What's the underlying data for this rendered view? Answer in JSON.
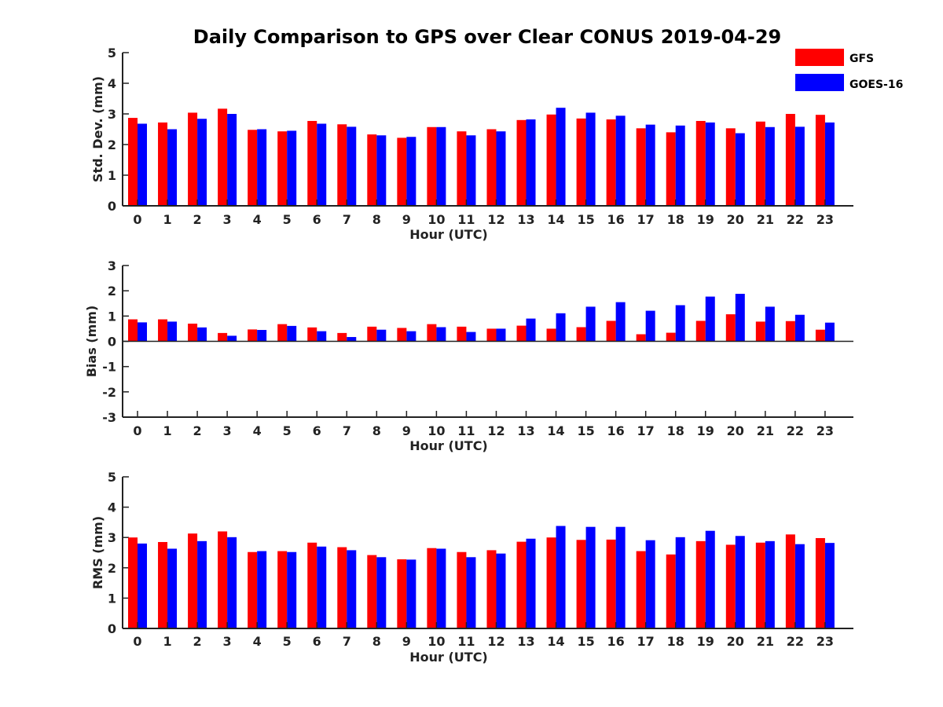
{
  "chart_data": {
    "title": "Daily Comparison to GPS over Clear CONUS 2019-04-29",
    "type": "bar",
    "legend": {
      "placement": "top-right",
      "entries": [
        {
          "name": "GFS",
          "color": "#ff0000"
        },
        {
          "name": "GOES-16",
          "color": "#0000ff"
        }
      ]
    },
    "categories": [
      "0",
      "1",
      "2",
      "3",
      "4",
      "5",
      "6",
      "7",
      "8",
      "9",
      "10",
      "11",
      "12",
      "13",
      "14",
      "15",
      "16",
      "17",
      "18",
      "19",
      "20",
      "21",
      "22",
      "23"
    ],
    "panels": [
      {
        "ylabel": "Std. Dev. (mm)",
        "xlabel": "Hour (UTC)",
        "ylim": [
          0,
          5
        ],
        "yticks": [
          "0",
          "1",
          "2",
          "3",
          "4",
          "5"
        ],
        "series": [
          {
            "name": "GFS",
            "color": "#ff0000",
            "values": [
              2.87,
              2.72,
              3.04,
              3.17,
              2.48,
              2.43,
              2.77,
              2.66,
              2.33,
              2.22,
              2.57,
              2.43,
              2.5,
              2.8,
              2.98,
              2.85,
              2.82,
              2.53,
              2.4,
              2.77,
              2.53,
              2.75,
              3.0,
              2.97
            ]
          },
          {
            "name": "GOES-16",
            "color": "#0000ff",
            "values": [
              2.68,
              2.5,
              2.84,
              3.0,
              2.5,
              2.45,
              2.68,
              2.58,
              2.3,
              2.25,
              2.57,
              2.3,
              2.43,
              2.82,
              3.2,
              3.04,
              2.94,
              2.65,
              2.62,
              2.72,
              2.37,
              2.57,
              2.58,
              2.72
            ]
          }
        ]
      },
      {
        "ylabel": "Bias (mm)",
        "xlabel": "Hour (UTC)",
        "ylim": [
          -3,
          3
        ],
        "yticks": [
          "-3",
          "-2",
          "-1",
          "0",
          "1",
          "2",
          "3"
        ],
        "series": [
          {
            "name": "GFS",
            "color": "#ff0000",
            "values": [
              0.87,
              0.87,
              0.7,
              0.33,
              0.47,
              0.68,
              0.55,
              0.33,
              0.58,
              0.53,
              0.68,
              0.58,
              0.5,
              0.62,
              0.5,
              0.56,
              0.81,
              0.28,
              0.34,
              0.81,
              1.07,
              0.78,
              0.8,
              0.46
            ]
          },
          {
            "name": "GOES-16",
            "color": "#0000ff",
            "values": [
              0.75,
              0.78,
              0.55,
              0.22,
              0.45,
              0.61,
              0.4,
              0.17,
              0.46,
              0.4,
              0.56,
              0.37,
              0.5,
              0.9,
              1.11,
              1.37,
              1.55,
              1.21,
              1.43,
              1.77,
              1.88,
              1.37,
              1.05,
              0.74
            ]
          }
        ]
      },
      {
        "ylabel": "RMS (mm)",
        "xlabel": "Hour (UTC)",
        "ylim": [
          0,
          5
        ],
        "yticks": [
          "0",
          "1",
          "2",
          "3",
          "4",
          "5"
        ],
        "series": [
          {
            "name": "GFS",
            "color": "#ff0000",
            "values": [
              3.0,
              2.85,
              3.13,
              3.2,
              2.52,
              2.55,
              2.83,
              2.68,
              2.42,
              2.28,
              2.65,
              2.52,
              2.58,
              2.86,
              3.0,
              2.92,
              2.93,
              2.55,
              2.44,
              2.88,
              2.76,
              2.83,
              3.1,
              2.98
            ]
          },
          {
            "name": "GOES-16",
            "color": "#0000ff",
            "values": [
              2.8,
              2.63,
              2.88,
              3.01,
              2.55,
              2.52,
              2.7,
              2.58,
              2.35,
              2.27,
              2.63,
              2.35,
              2.47,
              2.96,
              3.38,
              3.35,
              3.35,
              2.91,
              3.01,
              3.22,
              3.05,
              2.88,
              2.78,
              2.82
            ]
          }
        ]
      }
    ]
  }
}
